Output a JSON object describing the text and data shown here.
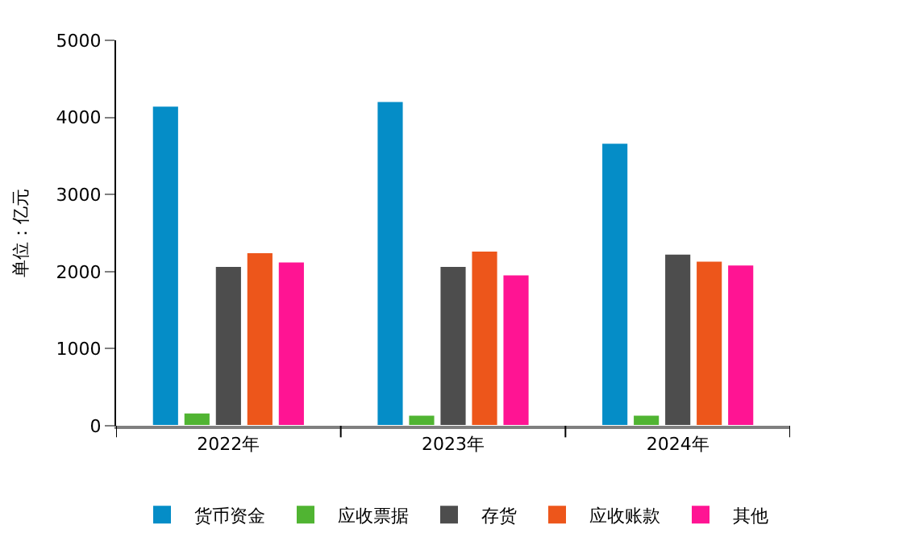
{
  "chart_data": {
    "type": "bar",
    "ylabel": "单位：亿元",
    "categories": [
      "2022年",
      "2023年",
      "2024年"
    ],
    "series": [
      {
        "name": "货币资金",
        "color": "#058dc7",
        "values": [
          4150,
          4210,
          3670
        ]
      },
      {
        "name": "应收票据",
        "color": "#50b432",
        "values": [
          170,
          140,
          140
        ]
      },
      {
        "name": "存货",
        "color": "#4d4d4d",
        "values": [
          2070,
          2070,
          2230
        ]
      },
      {
        "name": "应收账款",
        "color": "#ed561b",
        "values": [
          2250,
          2270,
          2140
        ]
      },
      {
        "name": "其他",
        "color": "#ff1493",
        "values": [
          2130,
          1960,
          2090
        ]
      }
    ],
    "ylim": [
      0,
      5000
    ],
    "yticks": [
      0,
      1000,
      2000,
      3000,
      4000,
      5000
    ],
    "legend": "bottom"
  }
}
